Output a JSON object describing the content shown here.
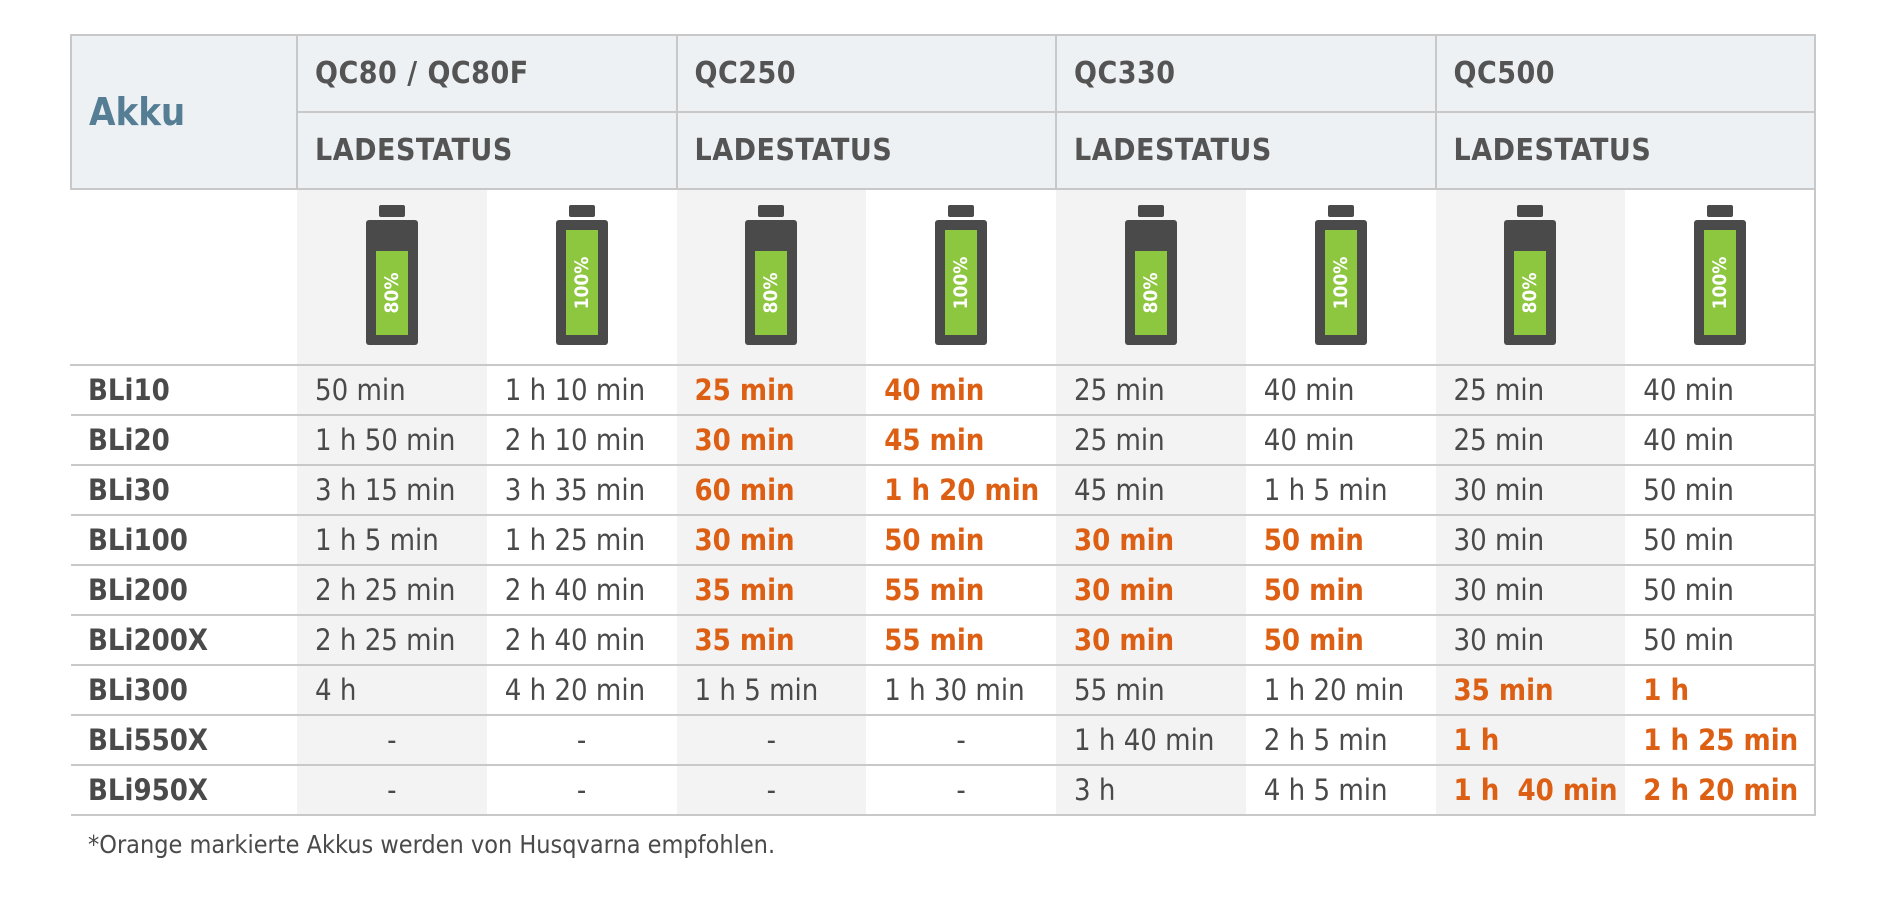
{
  "header": {
    "akku_label": "Akku",
    "chargers": [
      "QC80 / QC80F",
      "QC250",
      "QC330",
      "QC500"
    ],
    "status_label": "LADESTATUS"
  },
  "battery_levels": [
    "80%",
    "100%"
  ],
  "colors": {
    "orange_recommended": "#dc5f13",
    "header_bg": "#edf1f4",
    "akku_blue": "#557e95",
    "battery_green": "#8dc63f",
    "battery_body": "#4a4a4a"
  },
  "rows": [
    {
      "name": "BLi10",
      "cells": [
        {
          "v": "50 min",
          "o": false
        },
        {
          "v": "1 h 10 min",
          "o": false
        },
        {
          "v": "25 min",
          "o": true
        },
        {
          "v": "40 min",
          "o": true
        },
        {
          "v": "25 min",
          "o": false
        },
        {
          "v": "40 min",
          "o": false
        },
        {
          "v": "25 min",
          "o": false
        },
        {
          "v": "40 min",
          "o": false
        }
      ]
    },
    {
      "name": "BLi20",
      "cells": [
        {
          "v": "1 h 50 min",
          "o": false
        },
        {
          "v": "2 h 10 min",
          "o": false
        },
        {
          "v": "30 min",
          "o": true
        },
        {
          "v": "45 min",
          "o": true
        },
        {
          "v": "25 min",
          "o": false
        },
        {
          "v": "40 min",
          "o": false
        },
        {
          "v": "25 min",
          "o": false
        },
        {
          "v": "40 min",
          "o": false
        }
      ]
    },
    {
      "name": "BLi30",
      "cells": [
        {
          "v": "3 h 15 min",
          "o": false
        },
        {
          "v": "3 h 35 min",
          "o": false
        },
        {
          "v": "60 min",
          "o": true
        },
        {
          "v": "1 h 20 min",
          "o": true
        },
        {
          "v": "45 min",
          "o": false
        },
        {
          "v": "1 h 5 min",
          "o": false
        },
        {
          "v": "30 min",
          "o": false
        },
        {
          "v": "50 min",
          "o": false
        }
      ]
    },
    {
      "name": "BLi100",
      "cells": [
        {
          "v": "1 h 5 min",
          "o": false
        },
        {
          "v": "1 h 25 min",
          "o": false
        },
        {
          "v": "30 min",
          "o": true
        },
        {
          "v": "50 min",
          "o": true
        },
        {
          "v": "30 min",
          "o": true
        },
        {
          "v": "50 min",
          "o": true
        },
        {
          "v": "30 min",
          "o": false
        },
        {
          "v": "50 min",
          "o": false
        }
      ]
    },
    {
      "name": "BLi200",
      "cells": [
        {
          "v": "2 h 25 min",
          "o": false
        },
        {
          "v": "2 h 40 min",
          "o": false
        },
        {
          "v": "35 min",
          "o": true
        },
        {
          "v": "55 min",
          "o": true
        },
        {
          "v": "30 min",
          "o": true
        },
        {
          "v": "50 min",
          "o": true
        },
        {
          "v": "30 min",
          "o": false
        },
        {
          "v": "50 min",
          "o": false
        }
      ]
    },
    {
      "name": "BLi200X",
      "cells": [
        {
          "v": "2 h 25 min",
          "o": false
        },
        {
          "v": "2 h 40 min",
          "o": false
        },
        {
          "v": "35 min",
          "o": true
        },
        {
          "v": "55 min",
          "o": true
        },
        {
          "v": "30 min",
          "o": true
        },
        {
          "v": "50 min",
          "o": true
        },
        {
          "v": "30 min",
          "o": false
        },
        {
          "v": "50 min",
          "o": false
        }
      ]
    },
    {
      "name": "BLi300",
      "cells": [
        {
          "v": "4 h",
          "o": false
        },
        {
          "v": "4 h 20 min",
          "o": false
        },
        {
          "v": "1 h 5 min",
          "o": false
        },
        {
          "v": "1 h 30 min",
          "o": false
        },
        {
          "v": "55 min",
          "o": false
        },
        {
          "v": "1 h 20 min",
          "o": false
        },
        {
          "v": "35 min",
          "o": true
        },
        {
          "v": "1 h",
          "o": true
        }
      ]
    },
    {
      "name": "BLi550X",
      "cells": [
        {
          "v": "-",
          "o": false
        },
        {
          "v": "-",
          "o": false
        },
        {
          "v": "-",
          "o": false
        },
        {
          "v": "-",
          "o": false
        },
        {
          "v": "1 h 40 min",
          "o": false
        },
        {
          "v": "2 h 5 min",
          "o": false
        },
        {
          "v": "1 h",
          "o": true
        },
        {
          "v": "1 h 25 min",
          "o": true
        }
      ]
    },
    {
      "name": "BLi950X",
      "cells": [
        {
          "v": "-",
          "o": false
        },
        {
          "v": "-",
          "o": false
        },
        {
          "v": "-",
          "o": false
        },
        {
          "v": "-",
          "o": false
        },
        {
          "v": "3 h",
          "o": false
        },
        {
          "v": "4 h 5 min",
          "o": false
        },
        {
          "v": "1 h  40 min",
          "o": true
        },
        {
          "v": "2 h 20 min",
          "o": true
        }
      ]
    }
  ],
  "footnote": "*Orange markierte Akkus werden von Husqvarna empfohlen."
}
